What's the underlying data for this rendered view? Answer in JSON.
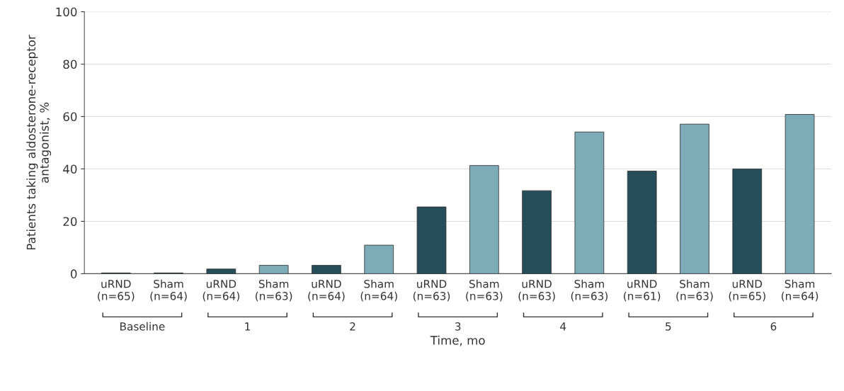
{
  "chart_data": {
    "type": "bar",
    "categories": [
      "uRND\n(n=65)",
      "Sham\n(n=64)",
      "uRND\n(n=64)",
      "Sham\n(n=63)",
      "uRND\n(n=64)",
      "Sham\n(n=64)",
      "uRND\n(n=63)",
      "Sham\n(n=63)",
      "uRND\n(n=63)",
      "Sham\n(n=63)",
      "uRND\n(n=61)",
      "Sham\n(n=63)",
      "uRND\n(n=65)",
      "Sham\n(n=64)"
    ],
    "values": [
      0.3,
      0.3,
      1.8,
      3.2,
      3.2,
      10.9,
      25.5,
      41.3,
      31.7,
      54.1,
      39.2,
      57.1,
      40.0,
      60.8
    ],
    "colors": [
      "#264d5a",
      "#264d5a",
      "#264d5a",
      "#7eabb8",
      "#264d5a",
      "#7eabb8",
      "#264d5a",
      "#7eabb8",
      "#264d5a",
      "#7eabb8",
      "#264d5a",
      "#7eabb8",
      "#264d5a",
      "#7eabb8"
    ],
    "annotations": [
      "Baseline",
      "1",
      "2",
      "3",
      "4",
      "5",
      "6"
    ],
    "xlabel": "Time, mo",
    "ylabel": "Patients taking aldosterone-receptor\nantagonist, %",
    "ylim": [
      0,
      100
    ],
    "yticks": [
      0,
      20,
      40,
      60,
      80,
      100
    ],
    "grid": "y"
  }
}
